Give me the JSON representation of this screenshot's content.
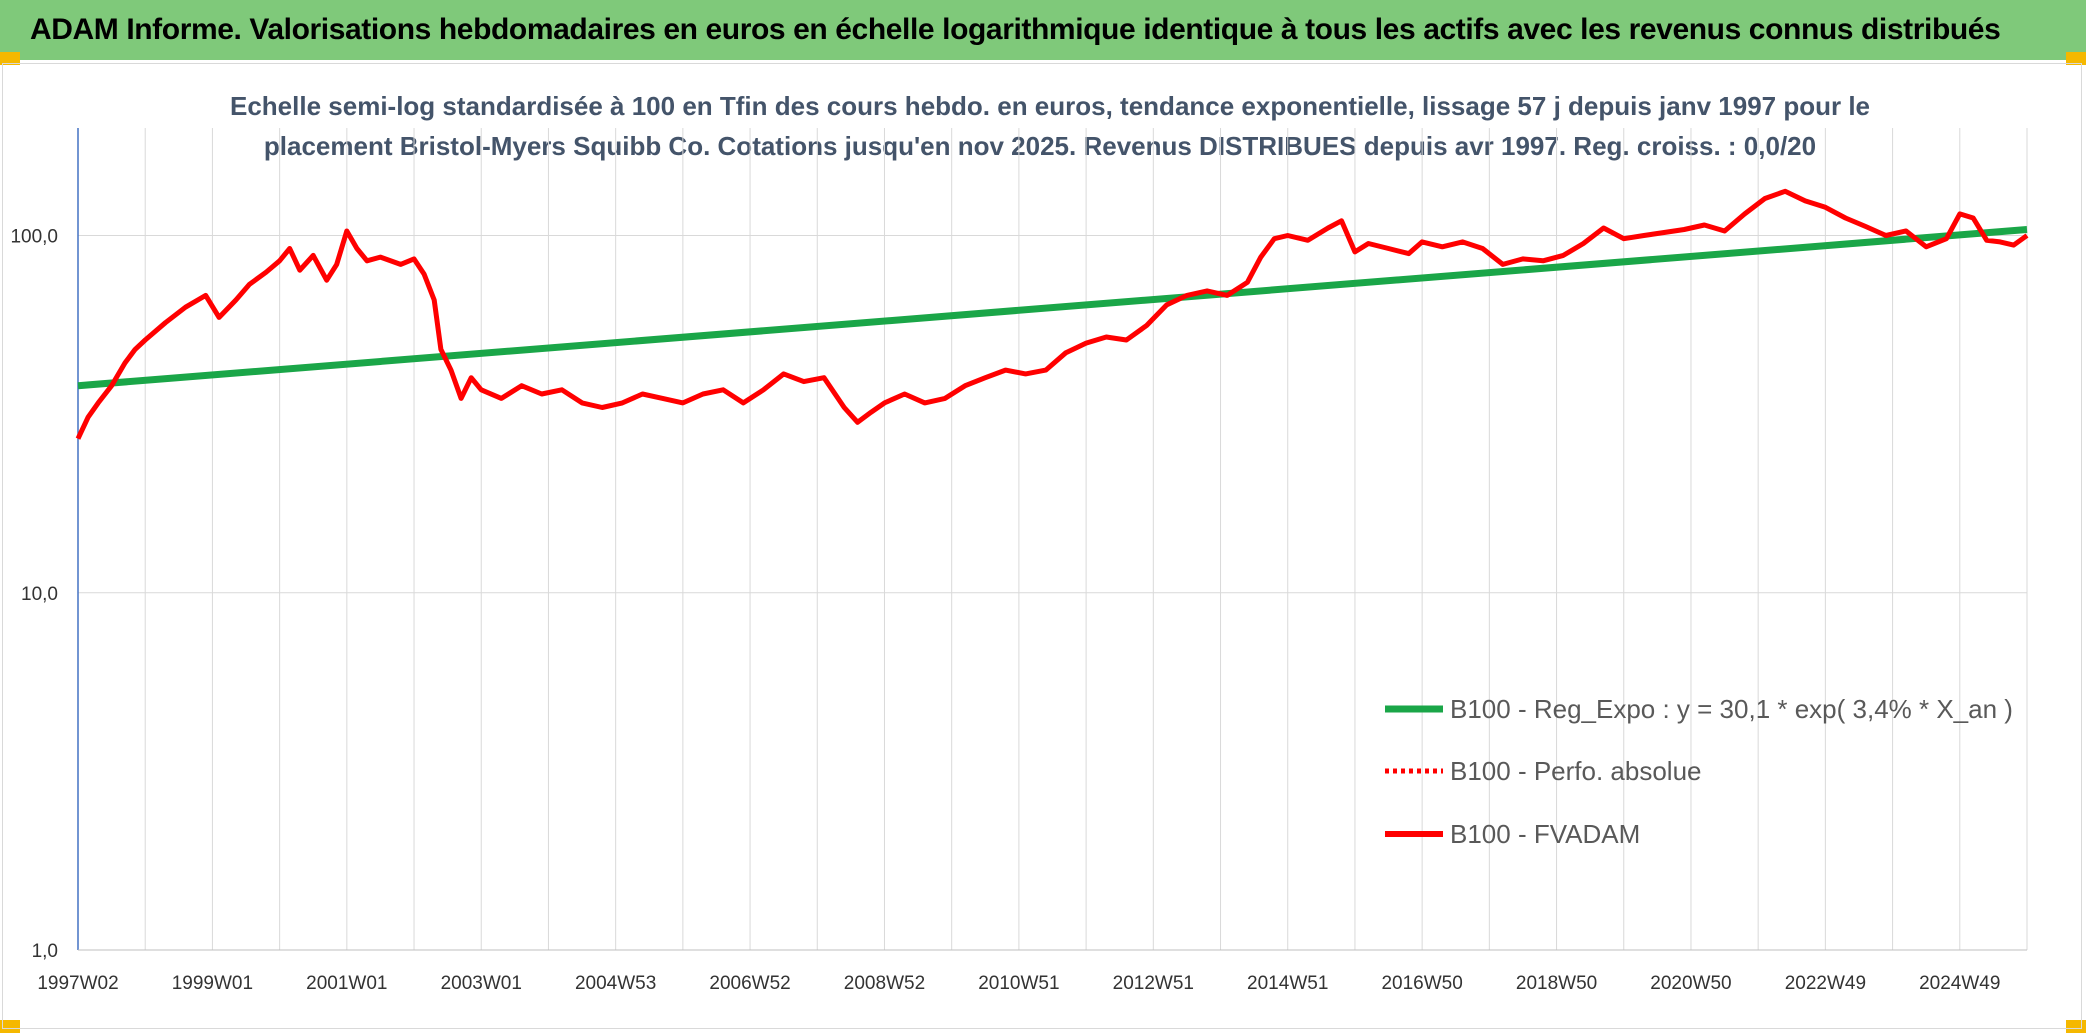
{
  "banner": {
    "title": "ADAM Informe. Valorisations hebdomadaires en euros en échelle logarithmique identique à tous les actifs avec les revenus connus distribués"
  },
  "colors": {
    "banner_bg": "#7fc97a",
    "corner_accent": "#f5b800",
    "trend_line": "#1aa648",
    "fvadam_line": "#ff0000",
    "title_text": "#44546a",
    "grid": "#d9d9d9"
  },
  "chart_data": {
    "type": "line",
    "title_line1": "Echelle semi-log standardisée à 100 en Tfin des cours hebdo. en euros, tendance exponentielle, lissage 57 j depuis janv 1997 pour le",
    "title_line2": "placement Bristol-Myers Squibb Co. Cotations jusqu'en nov 2025. Revenus DISTRIBUES depuis avr 1997. Reg. croiss. : 0,0/20",
    "y_scale": "log",
    "ylim": [
      1,
      200
    ],
    "y_ticks": [
      {
        "value": 1,
        "label": "1,0"
      },
      {
        "value": 10,
        "label": "10,0"
      },
      {
        "value": 100,
        "label": "100,0"
      }
    ],
    "xlim": [
      1997.0,
      2026.0
    ],
    "x_ticks": [
      {
        "x": 1997.0,
        "label": "1997W02"
      },
      {
        "x": 1999.0,
        "label": "1999W01"
      },
      {
        "x": 2001.0,
        "label": "2001W01"
      },
      {
        "x": 2003.0,
        "label": "2003W01"
      },
      {
        "x": 2005.0,
        "label": "2004W53"
      },
      {
        "x": 2007.0,
        "label": "2006W52"
      },
      {
        "x": 2009.0,
        "label": "2008W52"
      },
      {
        "x": 2011.0,
        "label": "2010W51"
      },
      {
        "x": 2013.0,
        "label": "2012W51"
      },
      {
        "x": 2015.0,
        "label": "2014W51"
      },
      {
        "x": 2017.0,
        "label": "2016W50"
      },
      {
        "x": 2019.0,
        "label": "2018W50"
      },
      {
        "x": 2021.0,
        "label": "2020W50"
      },
      {
        "x": 2023.0,
        "label": "2022W49"
      },
      {
        "x": 2025.0,
        "label": "2024W49"
      }
    ],
    "legend": [
      {
        "key": "trend",
        "label": "B100 - Reg_Expo : y = 30,1 * exp( 3,4% *  X_an )",
        "style": "solid-green"
      },
      {
        "key": "perfo",
        "label": "B100 - Perfo. absolue",
        "style": "dotted-red"
      },
      {
        "key": "fvadam",
        "label": "B100 - FVADAM",
        "style": "solid-red"
      }
    ],
    "series": [
      {
        "name": "B100 - Reg_Expo",
        "formula": "y = 30,1 * exp( 3,4% *  X_an )",
        "x": [
          1997.0,
          2026.0
        ],
        "values": [
          38,
          104
        ]
      },
      {
        "name": "B100 - FVADAM",
        "x": [
          1997.0,
          1997.15,
          1997.3,
          1997.5,
          1997.7,
          1997.85,
          1998.0,
          1998.3,
          1998.6,
          1998.9,
          1999.1,
          1999.35,
          1999.55,
          1999.8,
          2000.0,
          2000.15,
          2000.3,
          2000.5,
          2000.7,
          2000.85,
          2001.0,
          2001.15,
          2001.3,
          2001.5,
          2001.8,
          2002.0,
          2002.15,
          2002.3,
          2002.4,
          2002.55,
          2002.7,
          2002.85,
          2003.0,
          2003.3,
          2003.6,
          2003.9,
          2004.2,
          2004.5,
          2004.8,
          2005.1,
          2005.4,
          2005.7,
          2006.0,
          2006.3,
          2006.6,
          2006.9,
          2007.2,
          2007.5,
          2007.8,
          2008.1,
          2008.4,
          2008.6,
          2008.8,
          2009.0,
          2009.3,
          2009.6,
          2009.9,
          2010.2,
          2010.5,
          2010.8,
          2011.1,
          2011.4,
          2011.7,
          2012.0,
          2012.3,
          2012.6,
          2012.9,
          2013.2,
          2013.5,
          2013.8,
          2014.1,
          2014.4,
          2014.6,
          2014.8,
          2015.0,
          2015.3,
          2015.6,
          2015.8,
          2016.0,
          2016.2,
          2016.5,
          2016.8,
          2017.0,
          2017.3,
          2017.6,
          2017.9,
          2018.2,
          2018.5,
          2018.8,
          2019.1,
          2019.4,
          2019.7,
          2020.0,
          2020.3,
          2020.6,
          2020.9,
          2021.2,
          2021.5,
          2021.8,
          2022.1,
          2022.4,
          2022.7,
          2023.0,
          2023.3,
          2023.6,
          2023.9,
          2024.2,
          2024.5,
          2024.8,
          2025.0,
          2025.2,
          2025.4,
          2025.6,
          2025.8,
          2026.0
        ],
        "values": [
          27,
          31,
          34,
          38,
          44,
          48,
          51,
          57,
          63,
          68,
          59,
          66,
          73,
          79,
          85,
          92,
          80,
          88,
          75,
          83,
          103,
          92,
          85,
          87,
          83,
          86,
          78,
          66,
          48,
          42,
          35,
          40,
          37,
          35,
          38,
          36,
          37,
          34,
          33,
          34,
          36,
          35,
          34,
          36,
          37,
          34,
          37,
          41,
          39,
          40,
          33,
          30,
          32,
          34,
          36,
          34,
          35,
          38,
          40,
          42,
          41,
          42,
          47,
          50,
          52,
          51,
          56,
          64,
          68,
          70,
          68,
          74,
          87,
          98,
          100,
          97,
          105,
          110,
          90,
          95,
          92,
          89,
          96,
          93,
          96,
          92,
          83,
          86,
          85,
          88,
          95,
          105,
          98,
          100,
          102,
          104,
          107,
          103,
          115,
          127,
          133,
          125,
          120,
          112,
          106,
          100,
          103,
          93,
          98,
          115,
          112,
          97,
          96,
          94,
          100
        ]
      }
    ]
  }
}
